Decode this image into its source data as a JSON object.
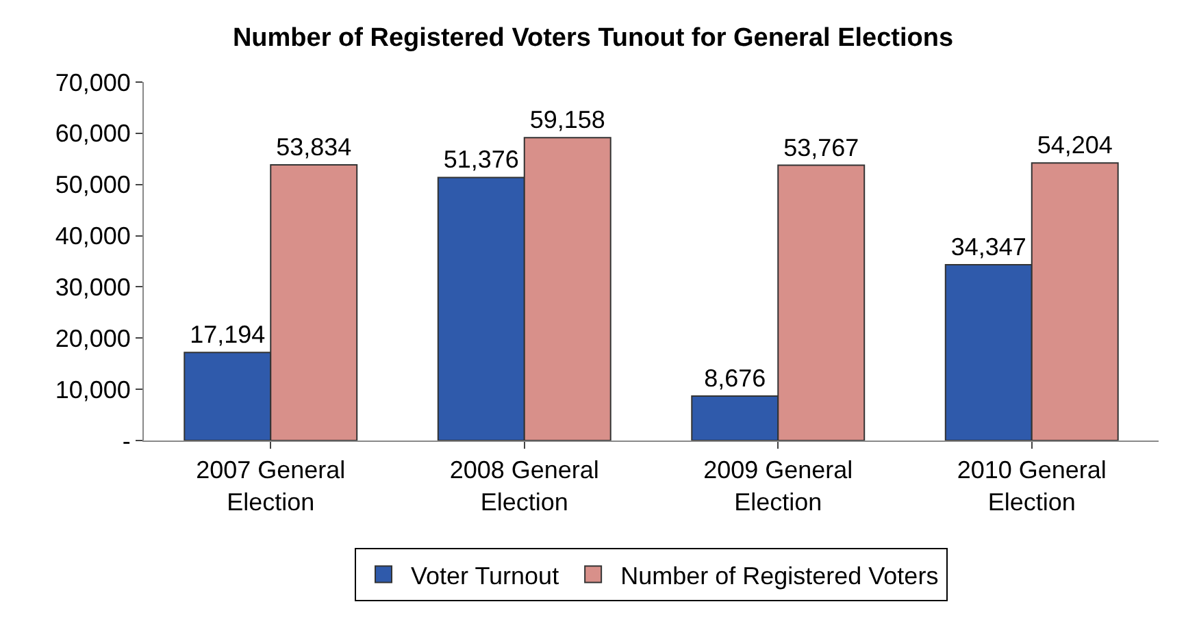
{
  "chart_data": {
    "type": "bar",
    "title": "Number of Registered Voters Tunout for General Elections",
    "categories": [
      "2007 General Election",
      "2008 General Election",
      "2009 General Election",
      "2010 General Election"
    ],
    "series": [
      {
        "name": "Voter Turnout",
        "color": "#2f5aab",
        "values": [
          17194,
          51376,
          8676,
          34347
        ],
        "value_labels": [
          "17,194",
          "51,376",
          "8,676",
          "34,347"
        ]
      },
      {
        "name": "Number of Registered Voters",
        "color": "#d8908a",
        "values": [
          53834,
          59158,
          53767,
          54204
        ],
        "value_labels": [
          "53,834",
          "59,158",
          "53,767",
          "54,204"
        ]
      }
    ],
    "ylim": [
      0,
      70000
    ],
    "yticks": [
      {
        "value": 0,
        "label": "-"
      },
      {
        "value": 10000,
        "label": "10,000"
      },
      {
        "value": 20000,
        "label": "20,000"
      },
      {
        "value": 30000,
        "label": "30,000"
      },
      {
        "value": 40000,
        "label": "40,000"
      },
      {
        "value": 50000,
        "label": "50,000"
      },
      {
        "value": 60000,
        "label": "60,000"
      },
      {
        "value": 70000,
        "label": "70,000"
      }
    ],
    "grid": false,
    "legend": "bottom"
  }
}
